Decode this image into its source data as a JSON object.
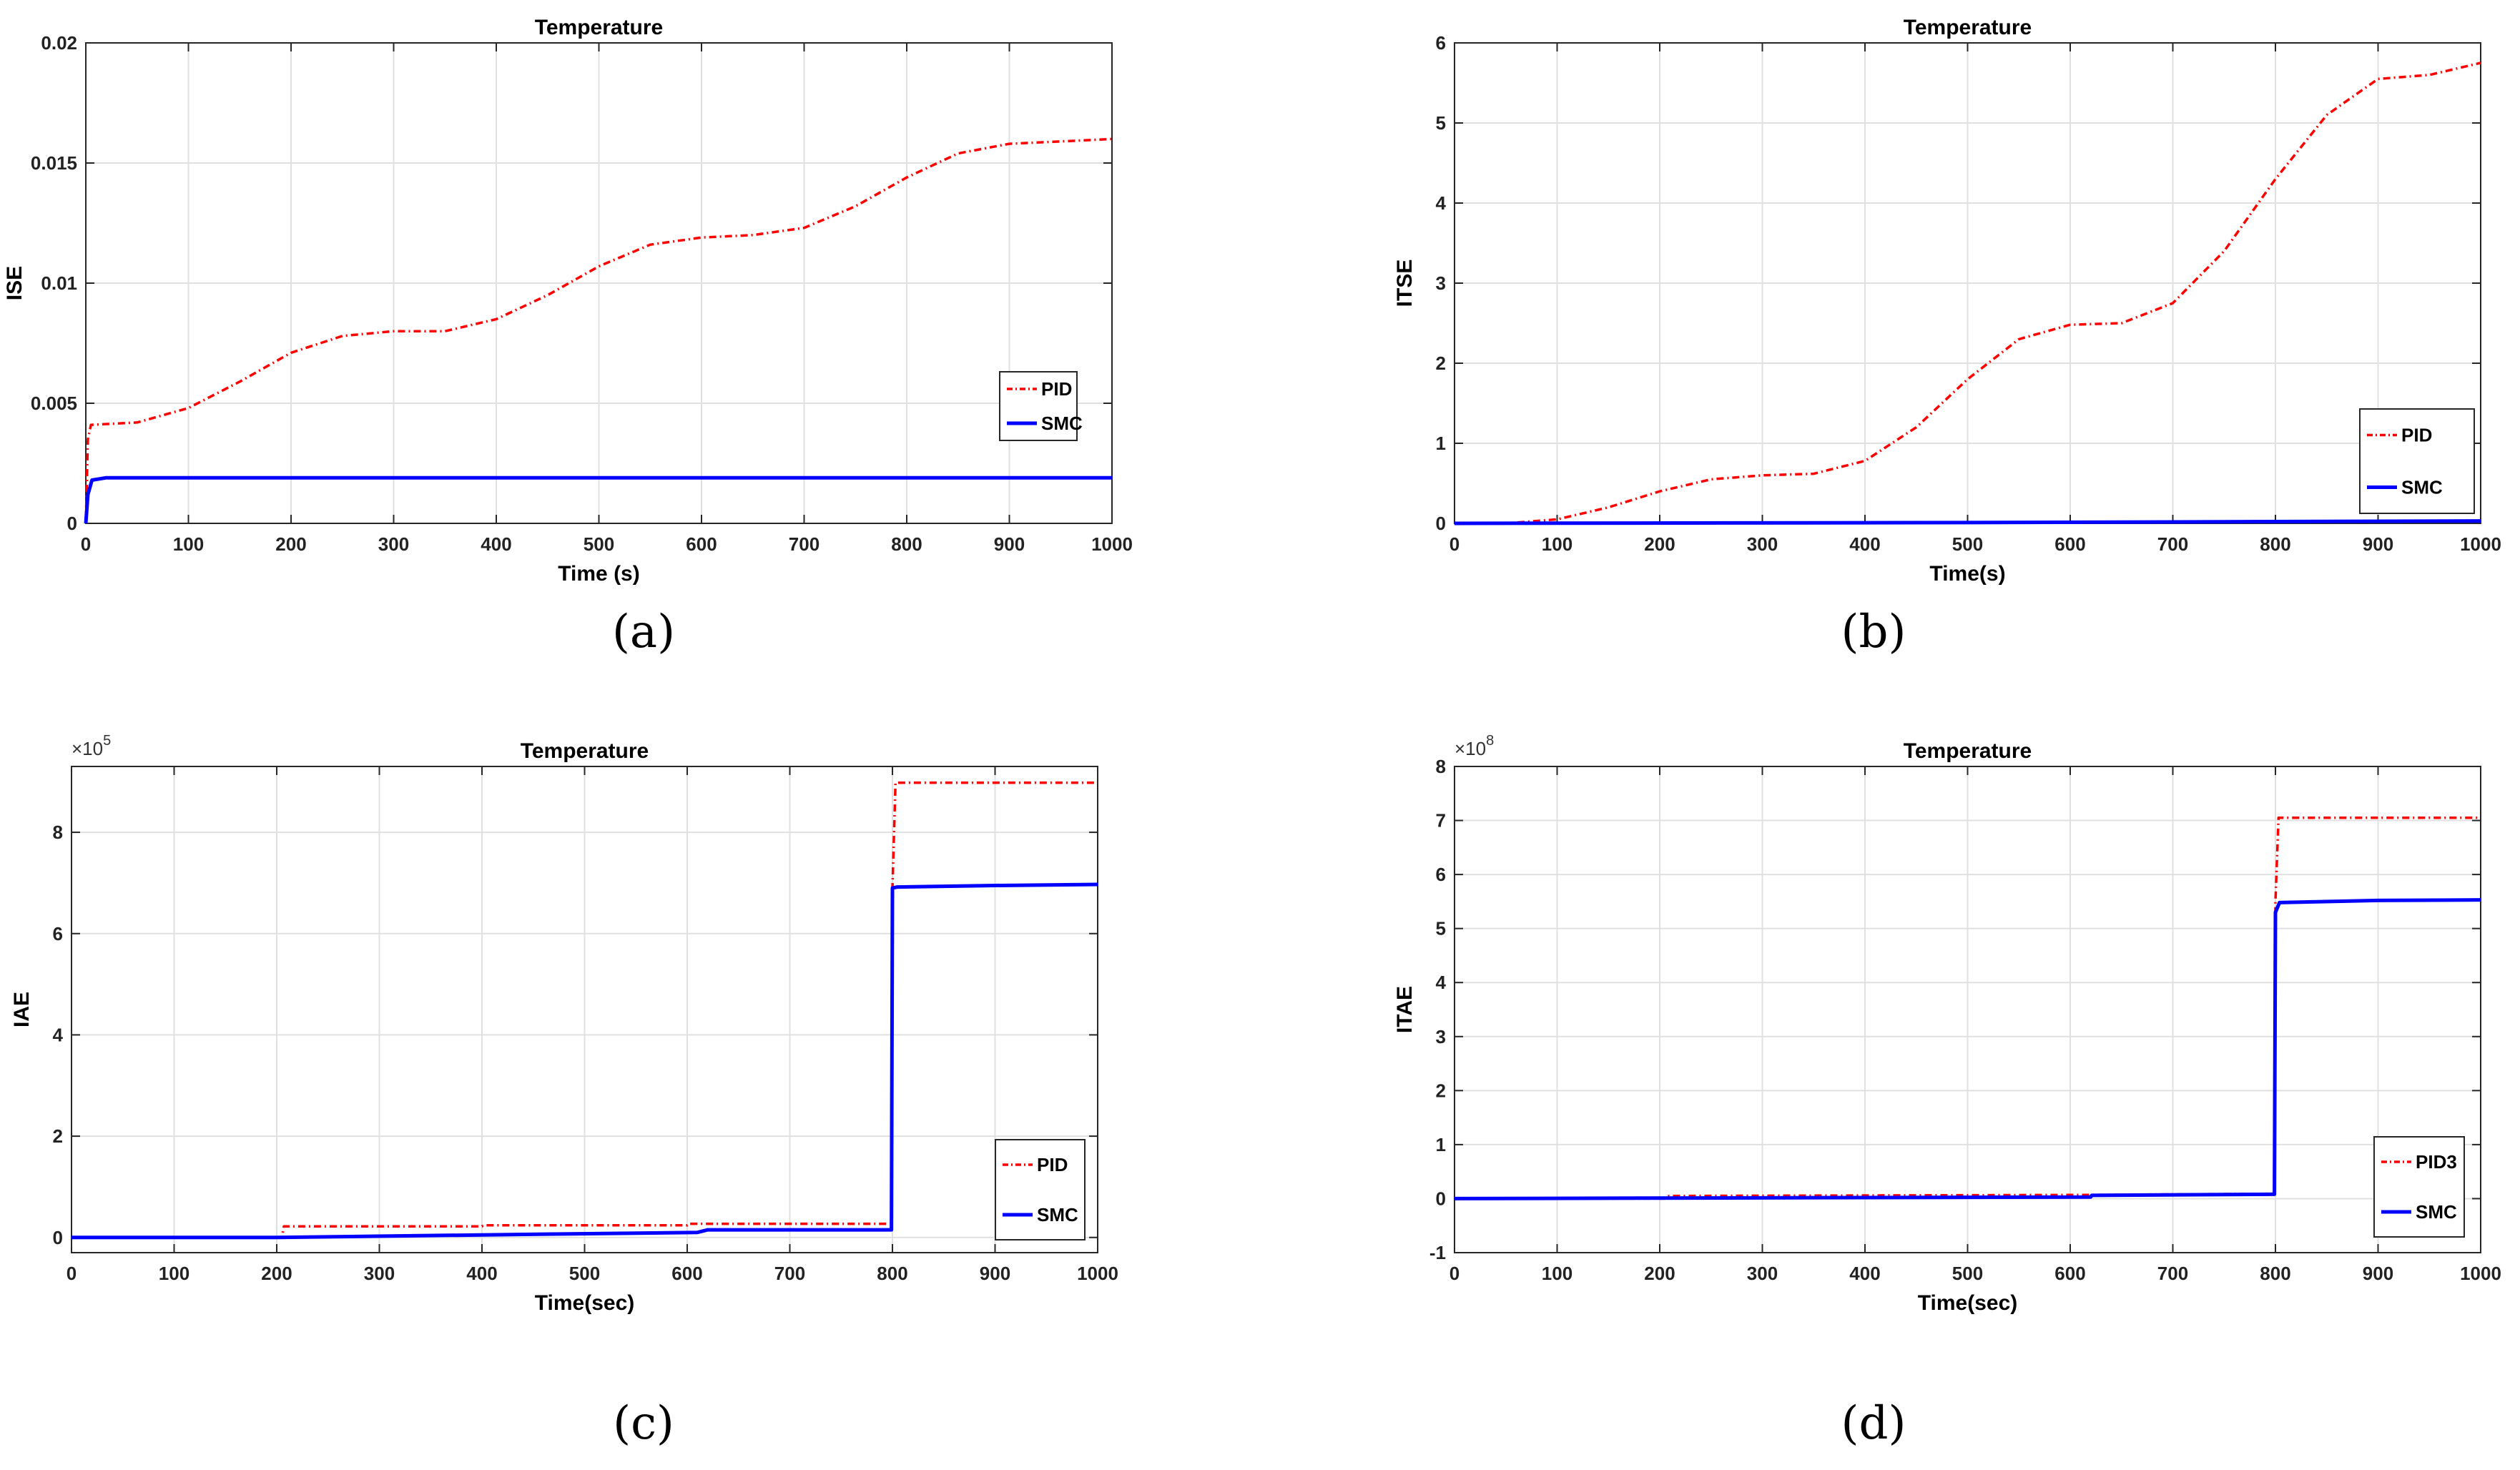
{
  "colors": {
    "pid": "#ff0000",
    "smc": "#0000ff",
    "grid": "#e0e0e0",
    "axis": "#262626"
  },
  "chart_data": [
    {
      "id": "a",
      "panel_label": "(a)",
      "type": "line",
      "title": "Temperature",
      "xlabel": "Time (s)",
      "ylabel": "ISE",
      "xlim": [
        0,
        1000
      ],
      "ylim": [
        0,
        0.02
      ],
      "xticks": [
        0,
        100,
        200,
        300,
        400,
        500,
        600,
        700,
        800,
        900,
        1000
      ],
      "yticks": [
        0,
        0.005,
        0.01,
        0.015,
        0.02
      ],
      "ytick_labels": [
        "0",
        "0.005",
        "0.01",
        "0.015",
        "0.02"
      ],
      "exponent": null,
      "legend_position": "right",
      "series": [
        {
          "name": "PID",
          "style": "dashdot",
          "color_key": "pid",
          "x": [
            0,
            2,
            5,
            50,
            100,
            150,
            200,
            250,
            300,
            350,
            400,
            450,
            500,
            550,
            600,
            650,
            700,
            750,
            800,
            850,
            900,
            950,
            1000
          ],
          "y": [
            0,
            0.0035,
            0.0041,
            0.0042,
            0.0048,
            0.0059,
            0.0071,
            0.0078,
            0.008,
            0.008,
            0.0085,
            0.0095,
            0.0107,
            0.0116,
            0.0119,
            0.012,
            0.0123,
            0.0132,
            0.0144,
            0.0154,
            0.0158,
            0.0159,
            0.016
          ]
        },
        {
          "name": "SMC",
          "style": "solid",
          "color_key": "smc",
          "x": [
            0,
            2,
            6,
            20,
            200,
            400,
            600,
            800,
            1000
          ],
          "y": [
            0,
            0.0012,
            0.0018,
            0.0019,
            0.0019,
            0.0019,
            0.0019,
            0.0019,
            0.0019
          ]
        }
      ]
    },
    {
      "id": "b",
      "panel_label": "(b)",
      "type": "line",
      "title": "Temperature",
      "xlabel": "Time(s)",
      "ylabel": "ITSE",
      "xlim": [
        0,
        1000
      ],
      "ylim": [
        0,
        6
      ],
      "xticks": [
        0,
        100,
        200,
        300,
        400,
        500,
        600,
        700,
        800,
        900,
        1000
      ],
      "yticks": [
        0,
        1,
        2,
        3,
        4,
        5,
        6
      ],
      "ytick_labels": [
        "0",
        "1",
        "2",
        "3",
        "4",
        "5",
        "6"
      ],
      "exponent": null,
      "legend_position": "bottom-right",
      "series": [
        {
          "name": "PID",
          "style": "dashdot",
          "color_key": "pid",
          "x": [
            0,
            50,
            100,
            150,
            200,
            250,
            300,
            350,
            400,
            450,
            500,
            550,
            600,
            650,
            700,
            750,
            800,
            850,
            900,
            950,
            1000
          ],
          "y": [
            0,
            0.0,
            0.05,
            0.2,
            0.4,
            0.55,
            0.6,
            0.62,
            0.78,
            1.2,
            1.8,
            2.3,
            2.48,
            2.5,
            2.75,
            3.4,
            4.3,
            5.1,
            5.55,
            5.6,
            5.75
          ]
        },
        {
          "name": "SMC",
          "style": "solid",
          "color_key": "smc",
          "x": [
            0,
            500,
            1000
          ],
          "y": [
            0,
            0.01,
            0.03
          ]
        }
      ]
    },
    {
      "id": "c",
      "panel_label": "(c)",
      "type": "line",
      "title": "Temperature",
      "xlabel": "Time(sec)",
      "ylabel": "IAE",
      "xlim": [
        0,
        1000
      ],
      "ylim": [
        -0.3,
        9.3
      ],
      "xticks": [
        0,
        100,
        200,
        300,
        400,
        500,
        600,
        700,
        800,
        900,
        1000
      ],
      "yticks": [
        0,
        2,
        4,
        6,
        8
      ],
      "ytick_labels": [
        "0",
        "2",
        "4",
        "6",
        "8"
      ],
      "exponent": {
        "base": "×10",
        "power": "5"
      },
      "legend_position": "bottom-right",
      "series": [
        {
          "name": "PID",
          "style": "dashdot",
          "color_key": "pid",
          "x": [
            0,
            205,
            207,
            400,
            401,
            600,
            601,
            799,
            800,
            803,
            1000
          ],
          "y": [
            0,
            0,
            0.22,
            0.22,
            0.24,
            0.24,
            0.27,
            0.27,
            6.9,
            8.98,
            8.98
          ]
        },
        {
          "name": "SMC",
          "style": "solid",
          "color_key": "smc",
          "x": [
            0,
            200,
            400,
            610,
            620,
            799,
            800,
            805,
            900,
            1000
          ],
          "y": [
            0,
            0,
            0.05,
            0.1,
            0.15,
            0.15,
            6.9,
            6.92,
            6.95,
            6.97
          ]
        }
      ]
    },
    {
      "id": "d",
      "panel_label": "(d)",
      "type": "line",
      "title": "Temperature",
      "xlabel": "Time(sec)",
      "ylabel": "ITAE",
      "xlim": [
        0,
        1000
      ],
      "ylim": [
        -1,
        8
      ],
      "xticks": [
        0,
        100,
        200,
        300,
        400,
        500,
        600,
        700,
        800,
        900,
        1000
      ],
      "yticks": [
        -1,
        0,
        1,
        2,
        3,
        4,
        5,
        6,
        7,
        8
      ],
      "ytick_labels": [
        "-1",
        "0",
        "1",
        "2",
        "3",
        "4",
        "5",
        "6",
        "7",
        "8"
      ],
      "exponent": {
        "base": "×10",
        "power": "8"
      },
      "legend_position": "bottom-right",
      "series": [
        {
          "name": "PID3",
          "style": "dashdot",
          "color_key": "pid",
          "x": [
            0,
            205,
            206,
            620,
            799,
            800,
            803,
            1000
          ],
          "y": [
            0,
            0,
            0.05,
            0.07,
            0.09,
            5.5,
            7.05,
            7.05
          ]
        },
        {
          "name": "SMC",
          "style": "solid",
          "color_key": "smc",
          "x": [
            0,
            620,
            621,
            799,
            800,
            804,
            900,
            1000
          ],
          "y": [
            0,
            0.03,
            0.06,
            0.08,
            5.3,
            5.48,
            5.52,
            5.53
          ]
        }
      ]
    }
  ]
}
